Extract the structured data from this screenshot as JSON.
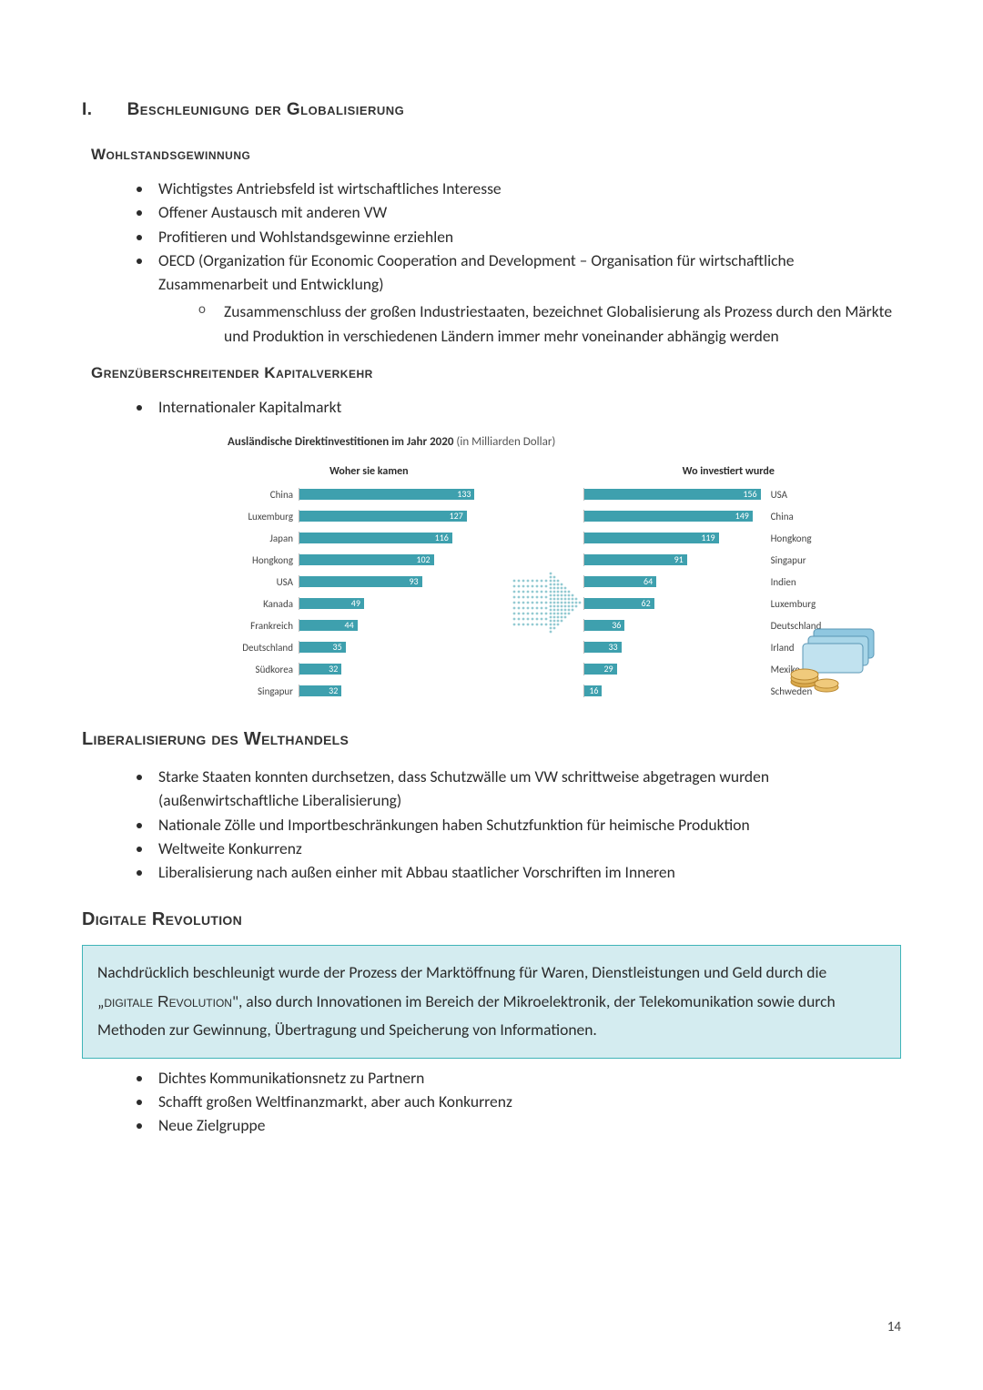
{
  "heading_index": "I.",
  "heading_title": "Beschleunigung der Globalisierung",
  "section1": {
    "title": "Wohlstandsgewinnung",
    "items": [
      "Wichtigstes Antriebsfeld ist wirtschaftliches Interesse",
      "Offener Austausch mit anderen VW",
      "Profitieren und Wohlstandsgewinne erziehlen",
      "OECD (Organization für Economic Cooperation and Development – Organisation für wirtschaftliche Zusammenarbeit und Entwicklung)"
    ],
    "sub_item": "Zusammenschluss der großen Industriestaaten, bezeichnet Globalisierung als Prozess durch den Märkte und Produktion in verschiedenen Ländern immer mehr voneinander abhängig werden"
  },
  "section2": {
    "title": "Grenzüberschreitender Kapitalverkehr",
    "item": "Internationaler Kapitalmarkt"
  },
  "chart": {
    "title_bold": "Ausländische Direktinvestitionen im Jahr 2020",
    "title_rest": " (in Milliarden Dollar)",
    "col_left_title": "Woher sie kamen",
    "col_right_title": "Wo investiert wurde",
    "bar_color": "#3ea0ae",
    "left": {
      "max": 160,
      "rows": [
        {
          "label": "China",
          "value": 133
        },
        {
          "label": "Luxemburg",
          "value": 127
        },
        {
          "label": "Japan",
          "value": 116
        },
        {
          "label": "Hongkong",
          "value": 102
        },
        {
          "label": "USA",
          "value": 93
        },
        {
          "label": "Kanada",
          "value": 49
        },
        {
          "label": "Frankreich",
          "value": 44
        },
        {
          "label": "Deutschland",
          "value": 35
        },
        {
          "label": "Südkorea",
          "value": 32
        },
        {
          "label": "Singapur",
          "value": 32
        }
      ]
    },
    "right": {
      "max": 160,
      "rows": [
        {
          "label": "USA",
          "value": 156
        },
        {
          "label": "China",
          "value": 149
        },
        {
          "label": "Hongkong",
          "value": 119
        },
        {
          "label": "Singapur",
          "value": 91
        },
        {
          "label": "Indien",
          "value": 64
        },
        {
          "label": "Luxemburg",
          "value": 62
        },
        {
          "label": "Deutschland",
          "value": 36
        },
        {
          "label": "Irland",
          "value": 33
        },
        {
          "label": "Mexiko",
          "value": 29
        },
        {
          "label": "Schweden",
          "value": 16
        }
      ]
    }
  },
  "section3": {
    "title": "Liberalisierung des Welthandels",
    "items": [
      "Starke Staaten konnten durchsetzen, dass Schutzwälle um VW schrittweise abgetragen wurden (außenwirtschaftliche Liberalisierung)",
      "Nationale Zölle und Importbeschränkungen haben Schutzfunktion für heimische Produktion",
      "Weltweite Konkurrenz",
      "Liberalisierung nach außen einher mit Abbau staatlicher Vorschriften im Inneren"
    ]
  },
  "section4": {
    "title": "Digitale Revolution",
    "box_pre": "Nachdrücklich beschleunigt wurde der Prozess der Marktöffnung für Waren, Dienstleistungen und Geld durch die „",
    "box_sc": "digitale Revolution",
    "box_post": "\", also durch Innovationen im Bereich der Mikroelektronik, der Telekomunikation sowie durch Methoden zur Gewinnung, Übertragung und Speicherung von Informationen.",
    "items": [
      "Dichtes Kommunikationsnetz zu Partnern",
      "Schafft großen Weltfinanzmarkt, aber auch Konkurrenz",
      "Neue Zielgruppe"
    ]
  },
  "page_number": "14"
}
